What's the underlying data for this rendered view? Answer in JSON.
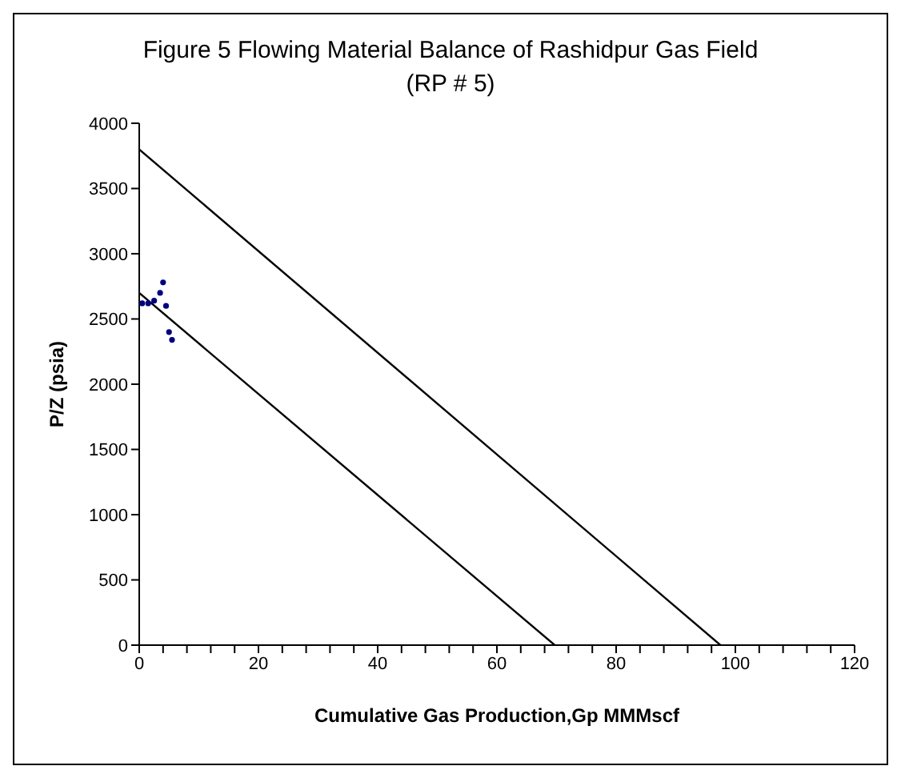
{
  "chart_data": {
    "type": "scatter",
    "title": "Figure 5 Flowing Material Balance of Rashidpur Gas Field (RP # 5)",
    "xlabel": "Cumulative Gas Production,Gp MMMscf",
    "ylabel": "P/Z (psia)",
    "xlim": [
      0,
      120
    ],
    "xticks": [
      0,
      {
        "value": 4,
        "label": null
      },
      {
        "value": 8,
        "label": null
      },
      {
        "value": 12,
        "label": null
      },
      {
        "value": 16,
        "label": null
      },
      20,
      {
        "value": 24,
        "label": null
      },
      {
        "value": 28,
        "label": null
      },
      {
        "value": 32,
        "label": null
      },
      {
        "value": 36,
        "label": null
      },
      40,
      {
        "value": 44,
        "label": null
      },
      {
        "value": 48,
        "label": null
      },
      {
        "value": 52,
        "label": null
      },
      {
        "value": 56,
        "label": null
      },
      60,
      {
        "value": 64,
        "label": null
      },
      {
        "value": 68,
        "label": null
      },
      {
        "value": 72,
        "label": null
      },
      {
        "value": 76,
        "label": null
      },
      80,
      {
        "value": 84,
        "label": null
      },
      {
        "value": 88,
        "label": null
      },
      {
        "value": 92,
        "label": null
      },
      {
        "value": 96,
        "label": null
      },
      100,
      {
        "value": 104,
        "label": null
      },
      {
        "value": 108,
        "label": null
      },
      {
        "value": 112,
        "label": null
      },
      {
        "value": 116,
        "label": null
      },
      120
    ],
    "ylim": [
      0,
      4000
    ],
    "yticks": [
      0,
      500,
      1000,
      1500,
      2000,
      2500,
      3000,
      3500,
      4000
    ],
    "grid": false,
    "series": [
      {
        "color": "#000080",
        "marker": "circle",
        "x": [
          0.5,
          1.5,
          2.5,
          3.5,
          4,
          4.5,
          5,
          5.5
        ],
        "values": [
          2620,
          2620,
          2640,
          2700,
          2780,
          2600,
          2400,
          2340
        ]
      },
      {
        "type": "line",
        "color": "#000000",
        "marker": "none",
        "x": [
          0,
          97.5
        ],
        "values": [
          3800,
          0
        ]
      },
      {
        "type": "line",
        "color": "#000000",
        "marker": "none",
        "x": [
          0,
          69.7
        ],
        "values": [
          2700,
          0
        ]
      }
    ]
  }
}
